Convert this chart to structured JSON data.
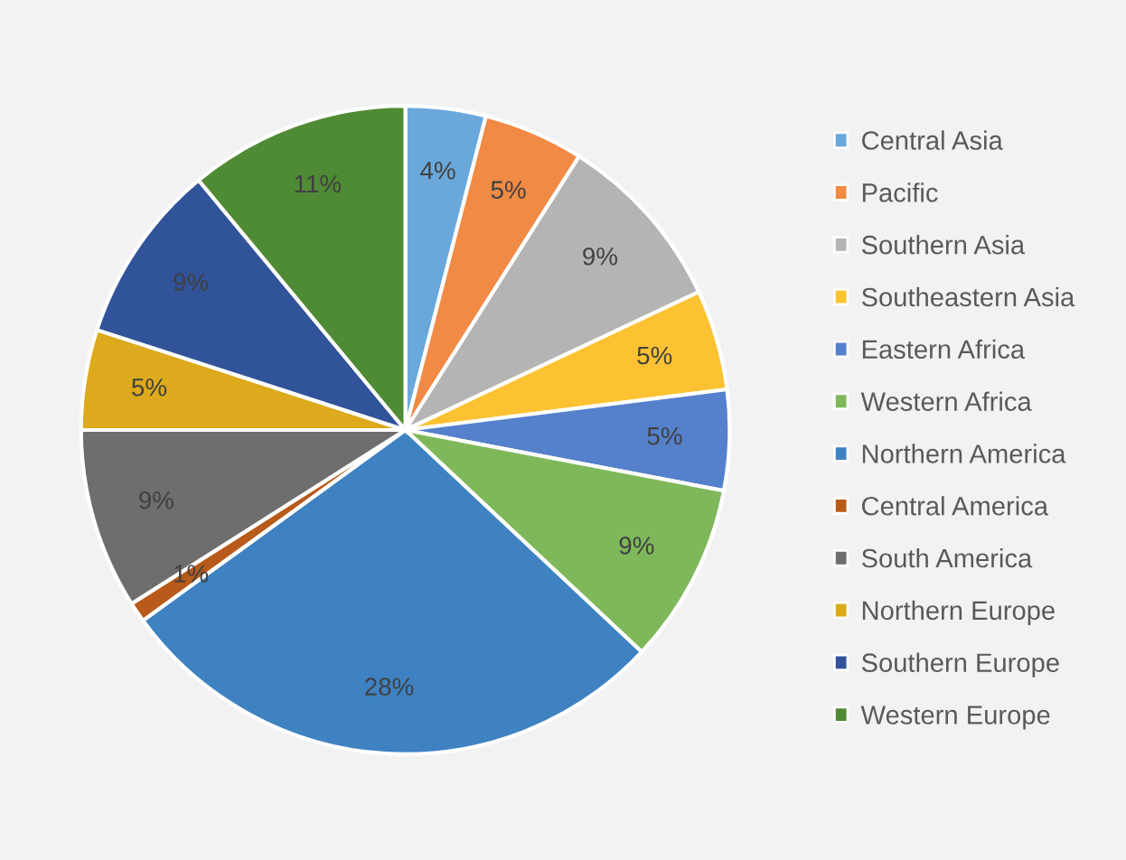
{
  "chart_data": {
    "type": "pie",
    "categories": [
      "Central Asia",
      "Pacific",
      "Southern Asia",
      "Southeastern Asia",
      "Eastern Africa",
      "Western Africa",
      "Northern America",
      "Central America",
      "South America",
      "Northern Europe",
      "Southern Europe",
      "Western Europe"
    ],
    "values": [
      4,
      5,
      9,
      5,
      5,
      9,
      28,
      1,
      9,
      5,
      9,
      11
    ],
    "value_labels": [
      "4%",
      "5%",
      "9%",
      "5%",
      "5%",
      "9%",
      "28%",
      "1%",
      "9%",
      "5%",
      "9%",
      "11%"
    ],
    "colors": [
      "#6aa8dc",
      "#f08a45",
      "#b4b4b4",
      "#fcc231",
      "#5580cc",
      "#7fb85a",
      "#3f82c2",
      "#b85a1a",
      "#6e6e6e",
      "#dcaa1c",
      "#30539a",
      "#4f8a35"
    ],
    "legend": "right"
  }
}
